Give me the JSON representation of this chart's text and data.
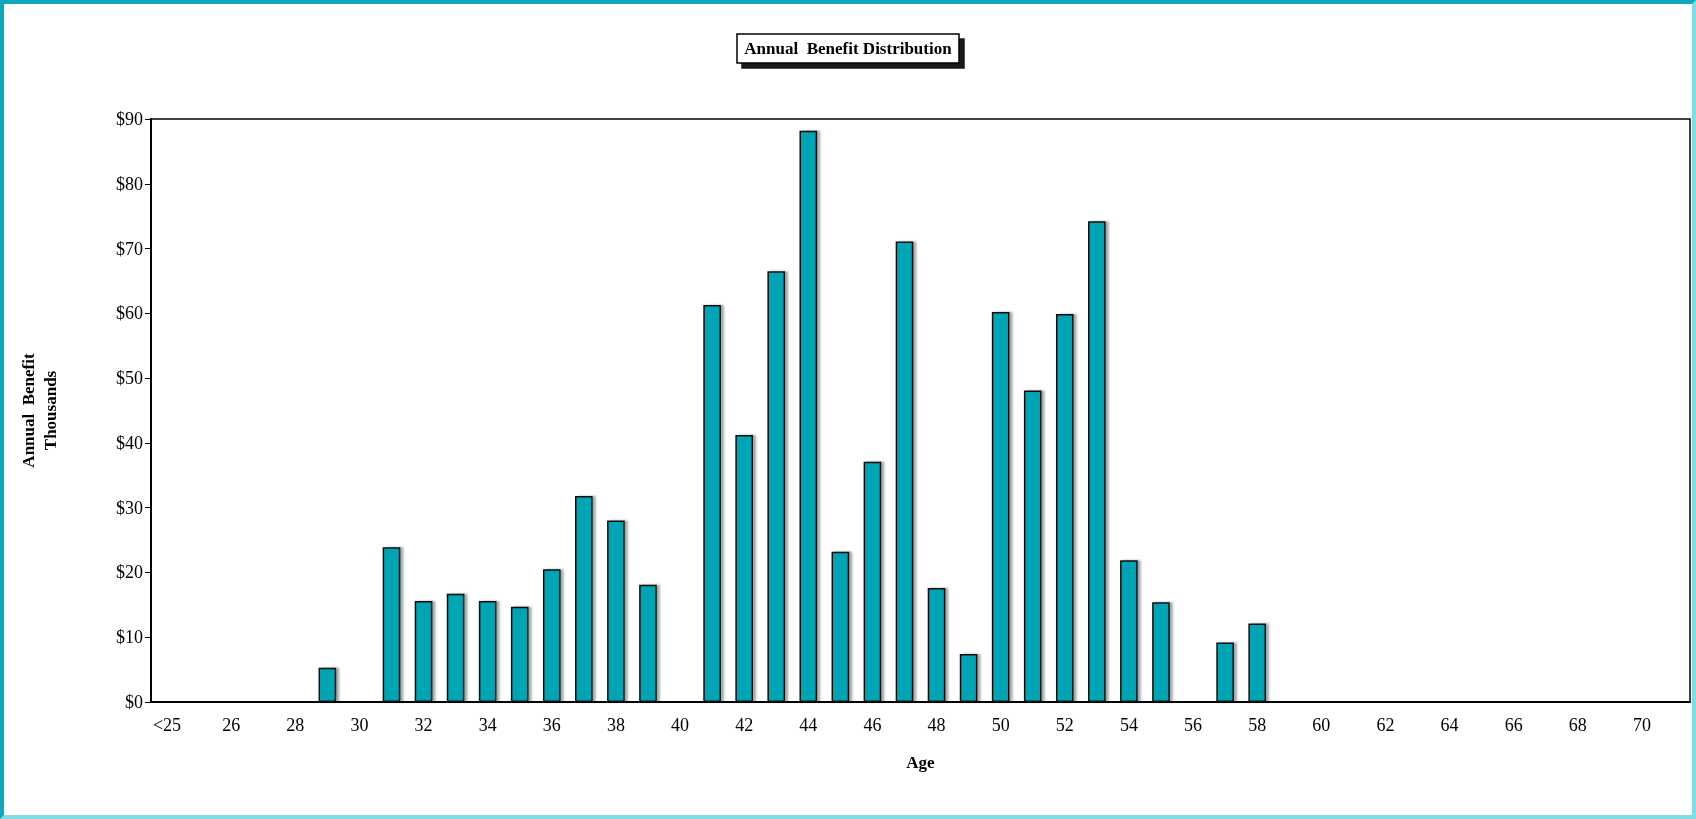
{
  "chart_data": {
    "type": "bar",
    "title": "Annual  Benefit Distribution",
    "xlabel": "Age",
    "ylabel": "Annual  Benefit\nThousands",
    "categories": [
      "<25",
      null,
      "26",
      null,
      "28",
      null,
      "30",
      null,
      "32",
      null,
      "34",
      null,
      "36",
      null,
      "38",
      null,
      "40",
      null,
      "42",
      null,
      "44",
      null,
      "46",
      null,
      "48",
      null,
      "50",
      null,
      "52",
      null,
      "54",
      null,
      "56",
      null,
      "58",
      null,
      "60",
      null,
      "62",
      null,
      "64",
      null,
      "66",
      null,
      "68",
      null,
      "70",
      null
    ],
    "values": [
      0,
      0,
      0,
      0,
      0,
      5.3,
      0,
      23.9,
      15.6,
      16.7,
      15.6,
      14.7,
      20.5,
      31.8,
      28.0,
      18.1,
      0,
      61.3,
      41.2,
      66.5,
      88.2,
      23.2,
      37.1,
      71.1,
      17.6,
      7.4,
      60.2,
      48.1,
      59.9,
      74.2,
      21.9,
      15.4,
      0,
      9.2,
      12.1,
      0,
      0,
      0,
      0,
      0,
      0,
      0,
      0,
      0,
      0,
      0,
      0,
      0
    ],
    "color": "#00a5b5",
    "ylim": [
      0,
      90
    ],
    "yticks": [
      {
        "value": 0,
        "label": "$0"
      },
      {
        "value": 10,
        "label": "$10"
      },
      {
        "value": 20,
        "label": "$20"
      },
      {
        "value": 30,
        "label": "$30"
      },
      {
        "value": 40,
        "label": "$40"
      },
      {
        "value": 50,
        "label": "$50"
      },
      {
        "value": 60,
        "label": "$60"
      },
      {
        "value": 70,
        "label": "$70"
      },
      {
        "value": 80,
        "label": "$80"
      },
      {
        "value": 90,
        "label": "$90"
      }
    ],
    "grid": false
  }
}
